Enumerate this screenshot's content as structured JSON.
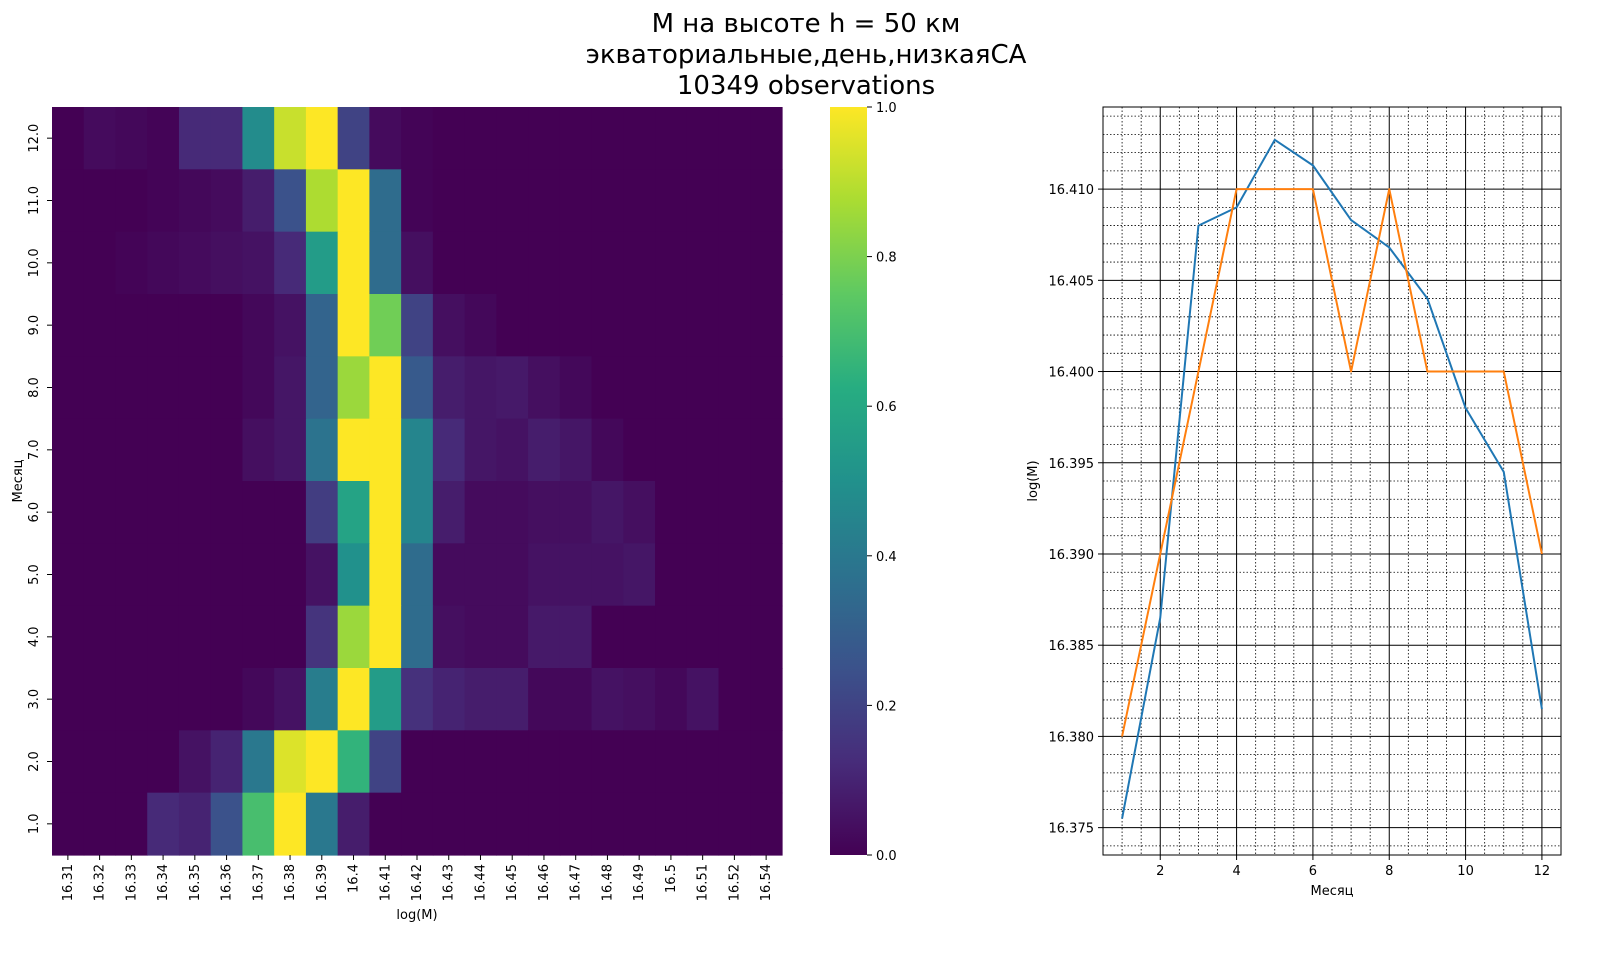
{
  "figure": {
    "title_lines": [
      "M на высоте h = 50 км",
      "экваториальные,день,низкаяСА",
      "10349 observations"
    ]
  },
  "chart_data": [
    {
      "type": "heatmap",
      "xlabel": "log(M)",
      "ylabel": "Месяц",
      "x_tick_labels": [
        "16.31",
        "16.32",
        "16.33",
        "16.34",
        "16.35",
        "16.36",
        "16.37",
        "16.38",
        "16.39",
        "16.4",
        "16.41",
        "16.42",
        "16.43",
        "16.44",
        "16.45",
        "16.46",
        "16.47",
        "16.48",
        "16.49",
        "16.5",
        "16.51",
        "16.52",
        "16.54"
      ],
      "y_tick_labels_top_to_bottom": [
        "12.0",
        "11.0",
        "10.0",
        "9.0",
        "8.0",
        "7.0",
        "6.0",
        "5.0",
        "4.0",
        "3.0",
        "2.0",
        "1.0"
      ],
      "values_top_to_bottom": [
        [
          0.0,
          0.03,
          0.02,
          0.01,
          0.12,
          0.12,
          0.48,
          0.92,
          1.0,
          0.2,
          0.03,
          0.01,
          0,
          0,
          0,
          0,
          0,
          0,
          0,
          0,
          0,
          0,
          0
        ],
        [
          0.0,
          0.0,
          0.0,
          0.01,
          0.02,
          0.03,
          0.08,
          0.25,
          0.88,
          1.0,
          0.35,
          0.01,
          0,
          0,
          0,
          0,
          0,
          0,
          0,
          0,
          0,
          0,
          0
        ],
        [
          0.0,
          0.0,
          0.01,
          0.02,
          0.03,
          0.04,
          0.05,
          0.12,
          0.55,
          1.0,
          0.35,
          0.04,
          0,
          0,
          0,
          0,
          0,
          0,
          0,
          0,
          0,
          0,
          0
        ],
        [
          0.0,
          0.0,
          0.0,
          0.0,
          0.0,
          0.0,
          0.02,
          0.05,
          0.32,
          1.0,
          0.78,
          0.2,
          0.04,
          0.02,
          0,
          0,
          0,
          0,
          0,
          0,
          0,
          0,
          0
        ],
        [
          0.0,
          0.0,
          0.0,
          0.0,
          0.0,
          0.0,
          0.02,
          0.06,
          0.32,
          0.85,
          1.0,
          0.28,
          0.08,
          0.06,
          0.07,
          0.04,
          0.02,
          0,
          0,
          0,
          0,
          0,
          0
        ],
        [
          0.0,
          0.0,
          0.0,
          0.0,
          0.0,
          0.0,
          0.04,
          0.06,
          0.38,
          1.0,
          1.0,
          0.45,
          0.12,
          0.06,
          0.05,
          0.08,
          0.06,
          0.02,
          0,
          0,
          0,
          0,
          0
        ],
        [
          0.0,
          0.0,
          0.0,
          0.0,
          0.0,
          0.0,
          0.0,
          0.0,
          0.18,
          0.58,
          1.0,
          0.45,
          0.08,
          0.03,
          0.03,
          0.04,
          0.04,
          0.06,
          0.04,
          0,
          0,
          0,
          0
        ],
        [
          0.0,
          0.0,
          0.0,
          0.0,
          0.0,
          0.0,
          0.0,
          0.0,
          0.05,
          0.5,
          1.0,
          0.35,
          0.03,
          0.03,
          0.03,
          0.05,
          0.05,
          0.05,
          0.06,
          0,
          0,
          0,
          0
        ],
        [
          0.0,
          0.0,
          0.0,
          0.0,
          0.0,
          0.0,
          0.0,
          0.0,
          0.15,
          0.85,
          1.0,
          0.35,
          0.04,
          0.03,
          0.03,
          0.07,
          0.07,
          0,
          0,
          0,
          0,
          0,
          0
        ],
        [
          0.0,
          0.0,
          0.0,
          0.0,
          0.0,
          0.0,
          0.02,
          0.05,
          0.42,
          1.0,
          0.55,
          0.14,
          0.1,
          0.08,
          0.08,
          0.02,
          0.02,
          0.05,
          0.04,
          0.02,
          0.05,
          0,
          0
        ],
        [
          0.0,
          0.0,
          0.0,
          0.0,
          0.05,
          0.1,
          0.4,
          0.95,
          1.0,
          0.65,
          0.2,
          0,
          0,
          0,
          0,
          0,
          0,
          0,
          0,
          0,
          0,
          0,
          0
        ],
        [
          0.0,
          0.0,
          0.0,
          0.12,
          0.1,
          0.25,
          0.7,
          1.0,
          0.4,
          0.08,
          0,
          0,
          0,
          0,
          0,
          0,
          0,
          0,
          0,
          0,
          0,
          0,
          0
        ]
      ],
      "colorbar": {
        "min": 0.0,
        "max": 1.0,
        "ticks": [
          "0.0",
          "0.2",
          "0.4",
          "0.6",
          "0.8",
          "1.0"
        ],
        "colormap": "viridis"
      }
    },
    {
      "type": "line",
      "xlabel": "Месяц",
      "ylabel": "log(M)",
      "xlim": [
        0.5,
        12.5
      ],
      "ylim": [
        16.3735,
        16.4145
      ],
      "x_ticks": [
        2,
        4,
        6,
        8,
        10,
        12
      ],
      "y_ticks": [
        "16.375",
        "16.380",
        "16.385",
        "16.390",
        "16.395",
        "16.400",
        "16.405",
        "16.410"
      ],
      "grid": "major solid, minor dotted",
      "x": [
        1,
        2,
        3,
        4,
        5,
        6,
        7,
        8,
        9,
        10,
        11,
        12
      ],
      "series": [
        {
          "color": "#1f77b4",
          "values": [
            16.3755,
            16.3865,
            16.408,
            16.409,
            16.4127,
            16.4113,
            16.4083,
            16.4068,
            16.404,
            16.398,
            16.3945,
            16.3815
          ]
        },
        {
          "color": "#ff7f0e",
          "values": [
            16.38,
            16.39,
            16.4,
            16.41,
            16.41,
            16.41,
            16.4,
            16.41,
            16.4,
            16.4,
            16.4,
            16.39
          ]
        }
      ]
    }
  ]
}
